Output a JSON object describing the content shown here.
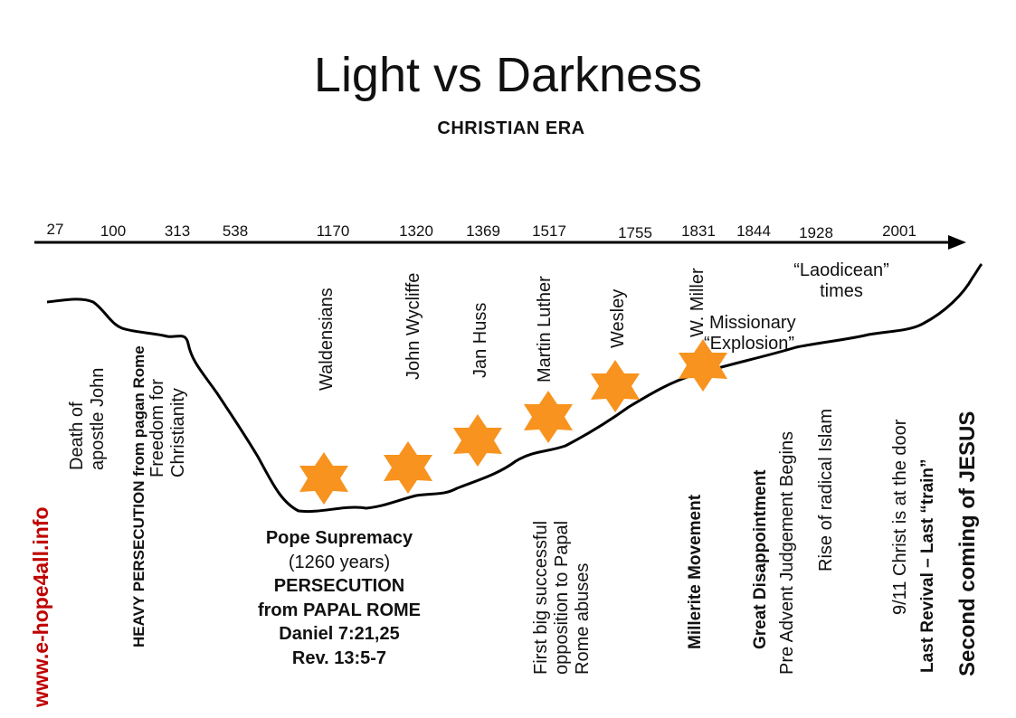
{
  "title": "Light vs  Darkness",
  "subtitle": "CHRISTIAN   ERA",
  "website": "www.e-hope4all.info",
  "colors": {
    "star": "#f7931e",
    "website": "#c00000",
    "line": "#000000"
  },
  "years": [
    "27",
    "100",
    "313",
    "538",
    "1170",
    "1320",
    "1369",
    "1517",
    "1755",
    "1831",
    "1844",
    "1928",
    "2001"
  ],
  "upper_labels": {
    "waldensians": "Waldensians",
    "wycliffe": "John Wycliffe",
    "huss": "Jan Huss",
    "luther": "Martin Luther",
    "wesley": "Wesley",
    "miller": "W. Miller",
    "missionary_1": "Missionary",
    "missionary_2": "“Explosion”",
    "laodicean_1": "“Laodicean”",
    "laodicean_2": "times"
  },
  "lower_labels": {
    "john_1": "Death of",
    "john_2": "apostle John",
    "heavy": "HEAVY  PERSECUTION from pagan Rome",
    "freedom_1": "Freedom for",
    "freedom_2": "Christianity",
    "pope_1": "Pope Supremacy",
    "pope_2": "(1260 years)",
    "pope_3": "PERSECUTION",
    "pope_4": "from PAPAL ROME",
    "pope_5": "Daniel 7:21,25",
    "pope_6": "Rev. 13:5-7",
    "first_1": "First big successful",
    "first_2": "opposition to Papal",
    "first_3": "Rome abuses",
    "millerite": "Millerite Movement",
    "great": "Great Disappointment",
    "preadvent": "Pre Advent Judgement Begins",
    "islam": "Rise of radical Islam",
    "nine_eleven": "9/11 Christ is at the door",
    "last_revival": "Last Revival – Last “train”",
    "second_coming": "Second coming of JESUS"
  }
}
